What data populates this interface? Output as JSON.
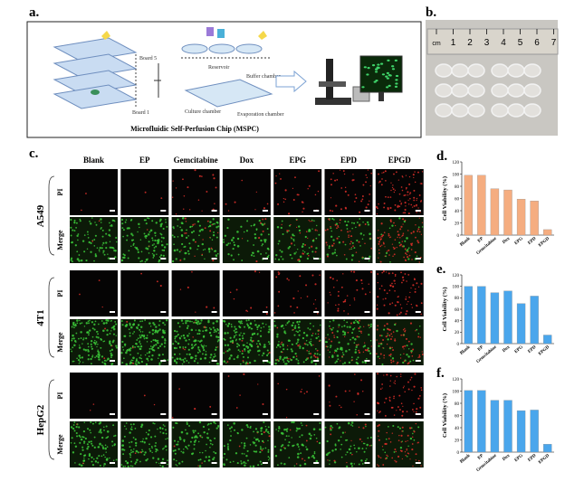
{
  "panel_labels": [
    "a.",
    "b.",
    "c.",
    "d.",
    "e.",
    "f."
  ],
  "schematic": {
    "board_top": "Board 5",
    "board_bottom": "Board 1",
    "reservoir": "Reservoir",
    "buffer": "Buffer chamber",
    "culture": "Culture chamber",
    "evaporation": "Evaporation chamber",
    "caption": "Microfluidic Self-Perfusion Chip (MSPC)"
  },
  "ruler": [
    "cm",
    "1",
    "2",
    "3",
    "4",
    "5",
    "6",
    "7"
  ],
  "microscopy": {
    "columns": [
      "Blank",
      "EP",
      "Gemcitabine",
      "Dox",
      "EPG",
      "EPD",
      "EPGD"
    ],
    "cell_lines": [
      "A549",
      "4T1",
      "HepG2"
    ],
    "channels": [
      "PI",
      "Merge"
    ]
  },
  "chart_data": [
    {
      "type": "bar",
      "ylabel": "Cell Viability (%)",
      "categories": [
        "Blank",
        "EP",
        "Gemcitabine",
        "Dox",
        "EPG",
        "EPD",
        "EPGD"
      ],
      "values": [
        98,
        98,
        76,
        74,
        59,
        56,
        9
      ],
      "color": "#f5ad80",
      "ylim": [
        0,
        120
      ],
      "yticks": [
        0,
        20,
        40,
        60,
        80,
        100,
        120
      ]
    },
    {
      "type": "bar",
      "ylabel": "Cell Viability (%)",
      "categories": [
        "Blank",
        "EP",
        "Gemcitabine",
        "Dox",
        "EPG",
        "EPD",
        "EPGD"
      ],
      "values": [
        100,
        100,
        89,
        92,
        70,
        83,
        15
      ],
      "color": "#4aa6ec",
      "ylim": [
        0,
        120
      ],
      "yticks": [
        0,
        20,
        40,
        60,
        80,
        100,
        120
      ]
    },
    {
      "type": "bar",
      "ylabel": "Cell Viability (%)",
      "categories": [
        "Blank",
        "EP",
        "Gemcitabine",
        "Dox",
        "EPG",
        "EPD",
        "EPGD"
      ],
      "values": [
        101,
        101,
        85,
        85,
        68,
        69,
        13
      ],
      "color": "#4aa6ec",
      "ylim": [
        0,
        120
      ],
      "yticks": [
        0,
        20,
        40,
        60,
        80,
        100,
        120
      ]
    }
  ]
}
